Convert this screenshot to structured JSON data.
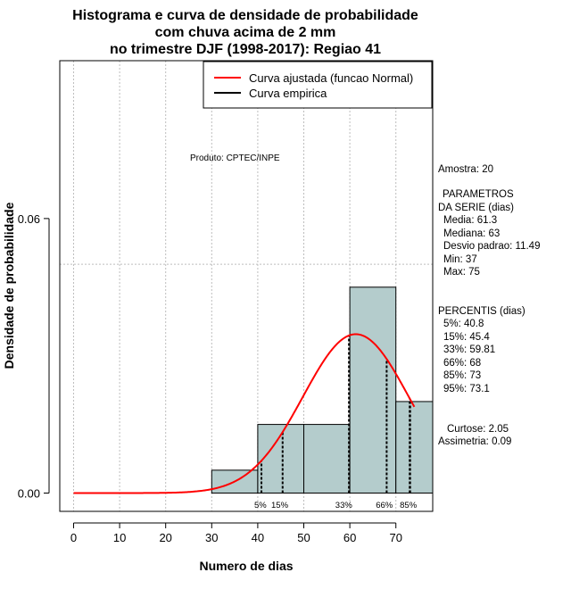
{
  "chart_data": {
    "type": "bar",
    "title_lines": [
      "Histograma e curva de densidade de probabilidade",
      "com chuva acima de 2 mm",
      "no trimestre DJF (1998-2017): Regiao 41"
    ],
    "xlabel": "Numero de dias",
    "ylabel": "Densidade de probabilidade",
    "xlim": [
      -3,
      78
    ],
    "ylim": [
      -0.004,
      0.0945
    ],
    "x_ticks": [
      0,
      10,
      20,
      30,
      40,
      50,
      60,
      70
    ],
    "x_tick_labels": [
      "0",
      "10",
      "20",
      "30",
      "40",
      "50",
      "60",
      "70"
    ],
    "y_ticks": [
      0.0,
      0.06
    ],
    "y_tick_labels": [
      "0.00",
      "0.06"
    ],
    "grid_x": [
      0,
      10,
      20,
      30,
      40,
      50,
      60,
      70
    ],
    "grid_y": [
      0.05
    ],
    "bins": [
      {
        "start": 30,
        "end": 40,
        "density": 0.005
      },
      {
        "start": 40,
        "end": 50,
        "density": 0.015
      },
      {
        "start": 50,
        "end": 60,
        "density": 0.015
      },
      {
        "start": 60,
        "end": 70,
        "density": 0.045
      },
      {
        "start": 70,
        "end": 78,
        "density": 0.02
      }
    ],
    "normal_curve": {
      "mean": 61.3,
      "sd": 11.49,
      "x_from": 0,
      "x_to": 74
    },
    "percentile_lines": [
      {
        "label": "5%",
        "x": 40.8
      },
      {
        "label": "15%",
        "x": 45.4
      },
      {
        "label": "33%",
        "x": 59.81
      },
      {
        "label": "66%",
        "x": 68
      },
      {
        "label": "85%",
        "x": 73
      },
      {
        "label": "95%",
        "x": 73.1
      }
    ],
    "percentile_label_row": "5%  15%                    33%          66%   85%",
    "legend": [
      {
        "label": "Curva ajustada (funcao Normal)",
        "color": "#ff0000"
      },
      {
        "label": "Curva empirica",
        "color": "#000000"
      }
    ],
    "bar_color": "#b4cccc",
    "curve_color": "#ff0000"
  },
  "product_label": "Produto: CPTEC/INPE",
  "stats_panel": {
    "sample": "Amostra: 20",
    "params_title_1": "PARAMETROS",
    "params_title_2": "DA SERIE (dias)",
    "media": "Media: 61.3",
    "mediana": "Mediana: 63",
    "desvio": "Desvio padrao: 11.49",
    "min": "Min: 37",
    "max": "Max: 75",
    "percentis_title": "PERCENTIS (dias)",
    "p5": "5%: 40.8",
    "p15": "15%: 45.4",
    "p33": "33%: 59.81",
    "p66": "66%: 68",
    "p85": "85%: 73",
    "p95": "95%: 73.1",
    "curtose": "Curtose: 2.05",
    "assimetria": "Assimetria: 0.09"
  }
}
